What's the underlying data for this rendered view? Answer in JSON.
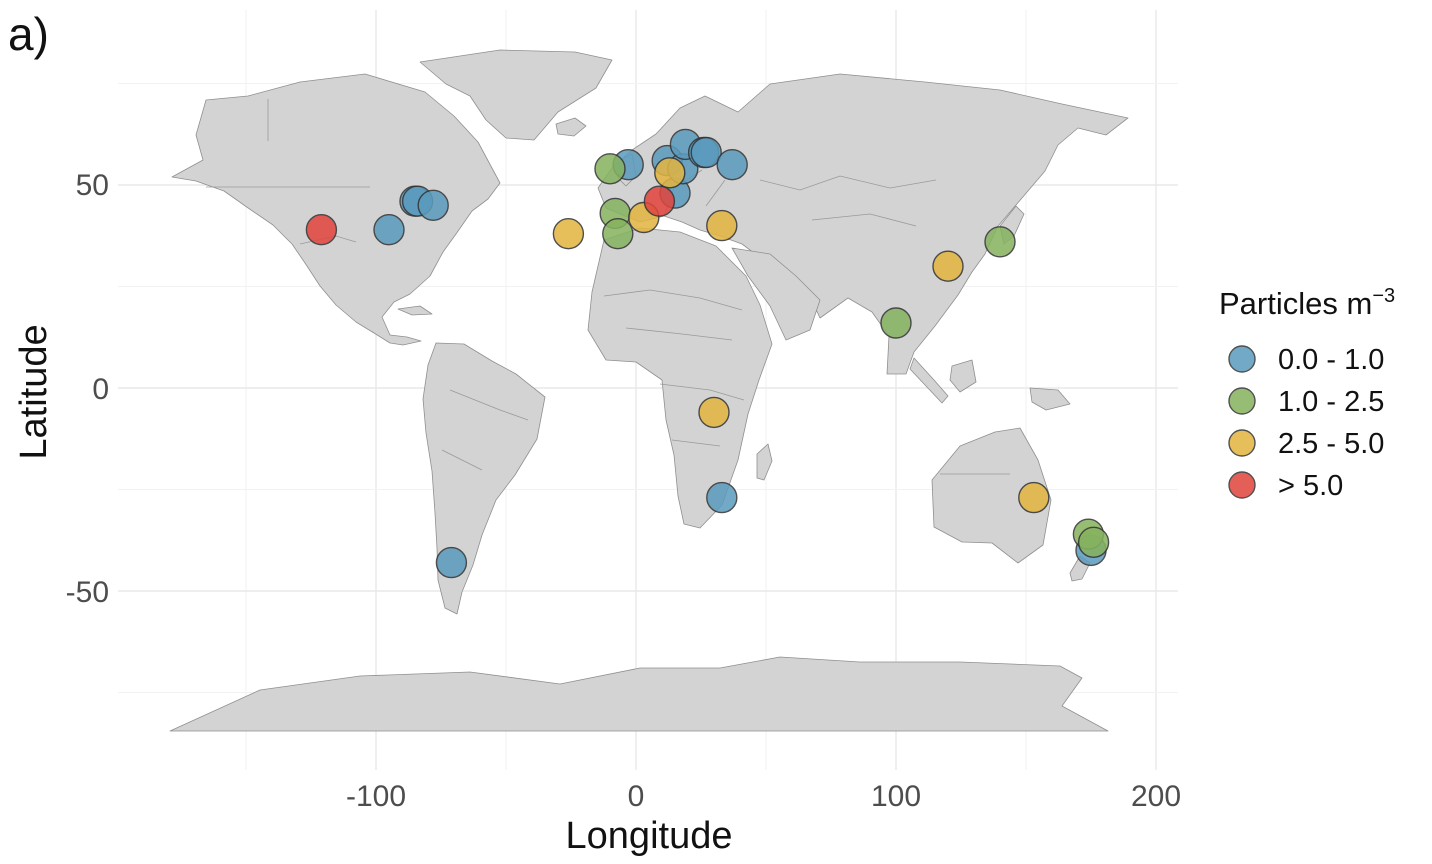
{
  "panel_tag": "a)",
  "axes": {
    "xlabel": "Longitude",
    "ylabel": "Latitude",
    "x_ticks": [
      "-100",
      "0",
      "100",
      "200"
    ],
    "y_ticks": [
      "50",
      "0",
      "-50"
    ],
    "x_tick_values": [
      -100,
      0,
      100,
      200
    ],
    "y_tick_values": [
      50,
      0,
      -50
    ]
  },
  "legend": {
    "title_main": "Particles m",
    "title_sup": "−3",
    "items": [
      {
        "label": "0.0 - 1.0",
        "color": "#5a9bbd"
      },
      {
        "label": "1.0 - 2.5",
        "color": "#86b35f"
      },
      {
        "label": "2.5 - 5.0",
        "color": "#e3b540"
      },
      {
        "label": "> 5.0",
        "color": "#e1453e"
      }
    ]
  },
  "chart_data": {
    "type": "scatter",
    "xlabel": "Longitude",
    "ylabel": "Latitude",
    "xlim": [
      -190,
      200
    ],
    "ylim": [
      -85,
      90
    ],
    "grid": true,
    "legend_position": "right",
    "series": [
      {
        "name": "0.0 - 1.0",
        "color": "#5a9bbd",
        "points": [
          {
            "x": -95,
            "y": 39
          },
          {
            "x": -85,
            "y": 46
          },
          {
            "x": -84,
            "y": 46
          },
          {
            "x": -78,
            "y": 45
          },
          {
            "x": -71,
            "y": -43
          },
          {
            "x": -3,
            "y": 55
          },
          {
            "x": 12,
            "y": 56
          },
          {
            "x": 15,
            "y": 48
          },
          {
            "x": 18,
            "y": 54
          },
          {
            "x": 19,
            "y": 60
          },
          {
            "x": 26,
            "y": 58
          },
          {
            "x": 27,
            "y": 58
          },
          {
            "x": 37,
            "y": 55
          },
          {
            "x": 33,
            "y": -27
          },
          {
            "x": 175,
            "y": -40
          }
        ]
      },
      {
        "name": "1.0 - 2.5",
        "color": "#86b35f",
        "points": [
          {
            "x": -10,
            "y": 54
          },
          {
            "x": -8,
            "y": 43
          },
          {
            "x": -7,
            "y": 38
          },
          {
            "x": 100,
            "y": 16
          },
          {
            "x": 140,
            "y": 36
          },
          {
            "x": 174,
            "y": -36
          },
          {
            "x": 176,
            "y": -38
          }
        ]
      },
      {
        "name": "2.5 - 5.0",
        "color": "#e3b540",
        "points": [
          {
            "x": -26,
            "y": 38
          },
          {
            "x": 3,
            "y": 42
          },
          {
            "x": 13,
            "y": 53
          },
          {
            "x": 33,
            "y": 40
          },
          {
            "x": 120,
            "y": 30
          },
          {
            "x": 30,
            "y": -6
          },
          {
            "x": 153,
            "y": -27
          }
        ]
      },
      {
        "name": "> 5.0",
        "color": "#e1453e",
        "points": [
          {
            "x": -121,
            "y": 39
          },
          {
            "x": 9,
            "y": 46
          }
        ]
      }
    ]
  }
}
